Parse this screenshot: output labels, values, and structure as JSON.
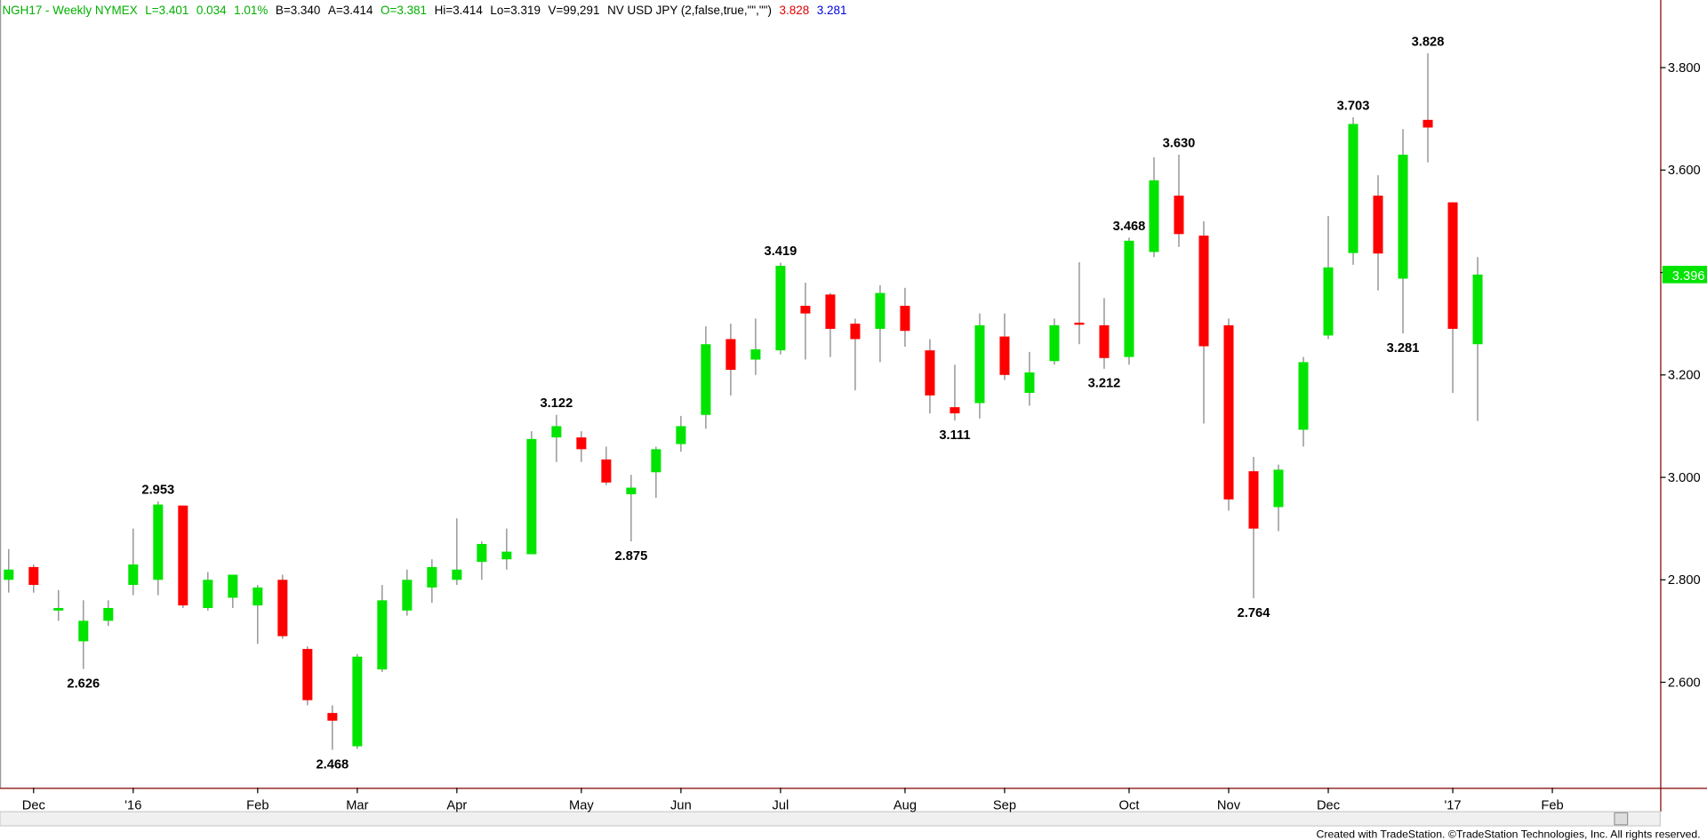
{
  "header": [
    {
      "text": "NGH17 - Weekly  NYMEX",
      "color": "#00b000"
    },
    {
      "text": "L=3.401",
      "color": "#00b000"
    },
    {
      "text": "0.034",
      "color": "#00b000"
    },
    {
      "text": "1.01%",
      "color": "#00b000"
    },
    {
      "text": "B=3.340",
      "color": "#000000"
    },
    {
      "text": "A=3.414",
      "color": "#000000"
    },
    {
      "text": "O=3.381",
      "color": "#00b000"
    },
    {
      "text": "Hi=3.414",
      "color": "#000000"
    },
    {
      "text": "Lo=3.319",
      "color": "#000000"
    },
    {
      "text": "V=99,291",
      "color": "#000000"
    },
    {
      "text": "NV USD JPY (2,false,true,\"\",\"\")",
      "color": "#000000"
    },
    {
      "text": "3.828",
      "color": "#e00000"
    },
    {
      "text": "3.281",
      "color": "#0000e0"
    }
  ],
  "chart_data": {
    "type": "candlestick",
    "up_color": "#00e400",
    "down_color": "#ff0000",
    "wick_color": "#808080",
    "categories": [
      null,
      "Dec",
      null,
      null,
      null,
      "'16",
      null,
      null,
      null,
      null,
      "Feb",
      null,
      null,
      null,
      "Mar",
      null,
      null,
      null,
      "Apr",
      null,
      null,
      null,
      null,
      "May",
      null,
      null,
      null,
      "Jun",
      null,
      null,
      null,
      "Jul",
      null,
      null,
      null,
      null,
      "Aug",
      null,
      null,
      null,
      "Sep",
      null,
      null,
      null,
      null,
      "Oct",
      null,
      null,
      null,
      "Nov",
      null,
      null,
      null,
      "Dec",
      null,
      null,
      null,
      null,
      "'17",
      null,
      null,
      null,
      "Feb",
      null,
      null,
      null,
      null
    ],
    "open": [
      2.8,
      2.825,
      2.74,
      2.68,
      2.72,
      2.79,
      2.8,
      2.945,
      2.745,
      2.765,
      2.75,
      2.8,
      2.665,
      2.54,
      2.475,
      2.625,
      2.74,
      2.785,
      2.8,
      2.835,
      2.84,
      2.85,
      3.078,
      3.078,
      3.035,
      2.967,
      3.01,
      3.065,
      3.122,
      3.27,
      3.23,
      3.248,
      3.335,
      3.357,
      3.3,
      3.29,
      3.335,
      3.248,
      3.137,
      3.145,
      3.275,
      3.165,
      3.227,
      3.302,
      3.297,
      3.235,
      3.44,
      3.55,
      3.472,
      3.297,
      3.012,
      2.942,
      3.093,
      3.277,
      3.438,
      3.55,
      3.388,
      3.698,
      3.537,
      3.26,
      null,
      null,
      null,
      null,
      null,
      null,
      null
    ],
    "high": [
      2.86,
      2.83,
      2.78,
      2.76,
      2.76,
      2.9,
      2.953,
      2.945,
      2.815,
      2.81,
      2.79,
      2.81,
      2.67,
      2.555,
      2.655,
      2.79,
      2.82,
      2.84,
      2.92,
      2.875,
      2.9,
      3.09,
      3.122,
      3.09,
      3.06,
      3.005,
      3.06,
      3.12,
      3.295,
      3.3,
      3.31,
      3.419,
      3.38,
      3.36,
      3.31,
      3.375,
      3.37,
      3.27,
      3.22,
      3.32,
      3.32,
      3.245,
      3.31,
      3.42,
      3.35,
      3.468,
      3.625,
      3.63,
      3.5,
      3.31,
      3.04,
      3.025,
      3.235,
      3.51,
      3.703,
      3.59,
      3.68,
      3.828,
      3.537,
      3.43,
      null,
      null,
      null,
      null,
      null,
      null,
      null
    ],
    "low": [
      2.775,
      2.775,
      2.72,
      2.626,
      2.71,
      2.77,
      2.77,
      2.745,
      2.74,
      2.745,
      2.675,
      2.685,
      2.555,
      2.468,
      2.47,
      2.62,
      2.73,
      2.755,
      2.79,
      2.8,
      2.82,
      2.85,
      3.03,
      3.03,
      2.985,
      2.875,
      2.96,
      3.05,
      3.095,
      3.16,
      3.2,
      3.24,
      3.23,
      3.235,
      3.17,
      3.225,
      3.255,
      3.125,
      3.111,
      3.115,
      3.19,
      3.14,
      3.22,
      3.26,
      3.212,
      3.22,
      3.43,
      3.45,
      3.105,
      2.935,
      2.764,
      2.895,
      3.06,
      3.27,
      3.415,
      3.365,
      3.281,
      3.615,
      3.165,
      3.11,
      null,
      null,
      null,
      null,
      null,
      null,
      null
    ],
    "close": [
      2.82,
      2.79,
      2.745,
      2.72,
      2.745,
      2.83,
      2.947,
      2.75,
      2.8,
      2.81,
      2.785,
      2.69,
      2.565,
      2.525,
      2.65,
      2.76,
      2.8,
      2.825,
      2.82,
      2.87,
      2.855,
      3.075,
      3.1,
      3.055,
      2.99,
      2.98,
      3.055,
      3.1,
      3.26,
      3.21,
      3.25,
      3.413,
      3.32,
      3.29,
      3.27,
      3.36,
      3.286,
      3.16,
      3.125,
      3.297,
      3.2,
      3.205,
      3.297,
      3.298,
      3.233,
      3.462,
      3.58,
      3.475,
      3.256,
      2.957,
      2.9,
      3.015,
      3.225,
      3.41,
      3.69,
      3.437,
      3.63,
      3.683,
      3.29,
      3.396,
      null,
      null,
      null,
      null,
      null,
      null,
      null
    ],
    "high_labels": [
      null,
      null,
      null,
      null,
      null,
      null,
      "2.953",
      null,
      null,
      null,
      null,
      null,
      null,
      null,
      null,
      null,
      null,
      null,
      null,
      null,
      null,
      null,
      "3.122",
      null,
      null,
      null,
      null,
      null,
      null,
      null,
      null,
      "3.419",
      null,
      null,
      null,
      null,
      null,
      null,
      null,
      null,
      null,
      null,
      null,
      null,
      null,
      "3.468",
      null,
      "3.630",
      null,
      null,
      null,
      null,
      null,
      null,
      "3.703",
      null,
      null,
      "3.828",
      null,
      null,
      null,
      null,
      null,
      null,
      null,
      null,
      null
    ],
    "low_labels": [
      null,
      null,
      null,
      "2.626",
      null,
      null,
      null,
      null,
      null,
      null,
      null,
      null,
      null,
      "2.468",
      null,
      null,
      null,
      null,
      null,
      null,
      null,
      null,
      null,
      null,
      null,
      "2.875",
      null,
      null,
      null,
      null,
      null,
      null,
      null,
      null,
      null,
      null,
      null,
      null,
      "3.111",
      null,
      null,
      null,
      null,
      null,
      "3.212",
      null,
      null,
      null,
      null,
      null,
      "2.764",
      null,
      null,
      null,
      null,
      null,
      "3.281",
      null,
      null,
      null,
      null,
      null,
      null,
      null,
      null,
      null,
      null
    ],
    "ylim": [
      2.394,
      3.932
    ],
    "yticks": [
      {
        "value": 2.6,
        "label": "2.600"
      },
      {
        "value": 2.8,
        "label": "2.800"
      },
      {
        "value": 3.0,
        "label": "3.000"
      },
      {
        "value": 3.2,
        "label": "3.200"
      },
      {
        "value": 3.4,
        "label": "3.400"
      },
      {
        "value": 3.6,
        "label": "3.600"
      },
      {
        "value": 3.8,
        "label": "3.800"
      }
    ],
    "last_color": "#00e400"
  },
  "footer": "Created with TradeStation. ©TradeStation Technologies, Inc. All rights reserved."
}
